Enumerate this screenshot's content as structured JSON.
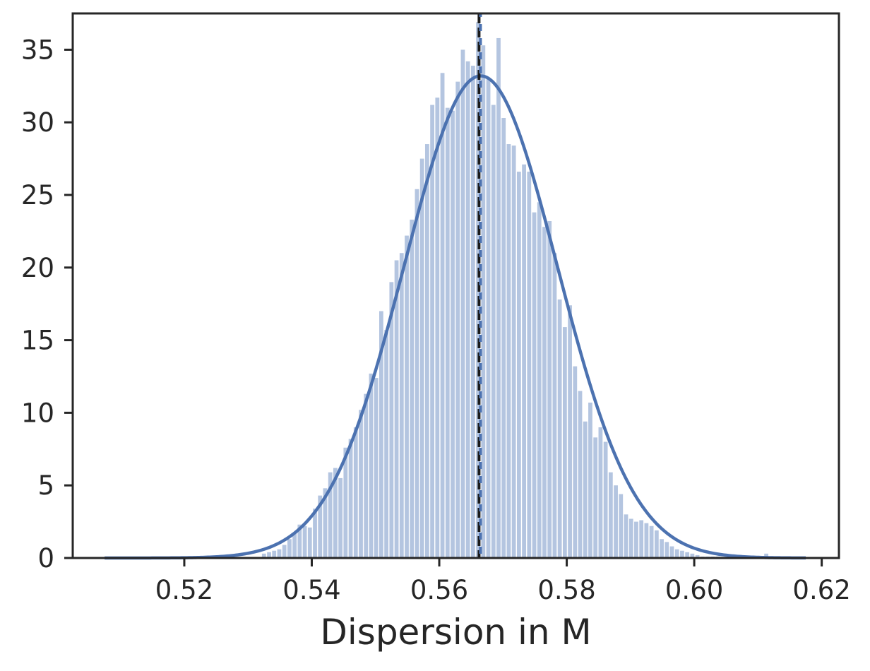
{
  "chart_data": {
    "type": "bar",
    "title": "",
    "xlabel": "Dispersion in M",
    "ylabel": "",
    "xlim": [
      0.5025,
      0.6227
    ],
    "ylim": [
      0,
      37.5
    ],
    "grid": false,
    "xticks": [
      {
        "value": 0.52,
        "label": "0.52"
      },
      {
        "value": 0.54,
        "label": "0.54"
      },
      {
        "value": 0.56,
        "label": "0.56"
      },
      {
        "value": 0.58,
        "label": "0.58"
      },
      {
        "value": 0.6,
        "label": "0.60"
      },
      {
        "value": 0.62,
        "label": "0.62"
      }
    ],
    "yticks": [
      {
        "value": 0,
        "label": "0"
      },
      {
        "value": 5,
        "label": "5"
      },
      {
        "value": 10,
        "label": "10"
      },
      {
        "value": 15,
        "label": "15"
      },
      {
        "value": 20,
        "label": "20"
      },
      {
        "value": 25,
        "label": "25"
      },
      {
        "value": 30,
        "label": "30"
      },
      {
        "value": 35,
        "label": "35"
      }
    ],
    "histogram": {
      "bin_centers": [
        0.5325,
        0.5333,
        0.5341,
        0.5349,
        0.5357,
        0.5365,
        0.5373,
        0.5381,
        0.5389,
        0.5397,
        0.5405,
        0.5413,
        0.5421,
        0.5429,
        0.5437,
        0.5445,
        0.5453,
        0.5461,
        0.5469,
        0.5477,
        0.5485,
        0.5493,
        0.5501,
        0.5509,
        0.5517,
        0.5525,
        0.5533,
        0.5541,
        0.5549,
        0.5557,
        0.5565,
        0.5573,
        0.5581,
        0.5589,
        0.5597,
        0.5605,
        0.5613,
        0.5621,
        0.5629,
        0.5637,
        0.5645,
        0.5653,
        0.5661,
        0.5669,
        0.5677,
        0.5685,
        0.5693,
        0.5701,
        0.5709,
        0.5717,
        0.5725,
        0.5733,
        0.5741,
        0.5749,
        0.5757,
        0.5765,
        0.5773,
        0.5781,
        0.5789,
        0.5797,
        0.5805,
        0.5813,
        0.5821,
        0.5829,
        0.5837,
        0.5845,
        0.5853,
        0.5861,
        0.5869,
        0.5877,
        0.5885,
        0.5893,
        0.5901,
        0.5909,
        0.5917,
        0.5925,
        0.5933,
        0.5941,
        0.5949,
        0.5957,
        0.5965,
        0.5973,
        0.5981,
        0.5989,
        0.5997,
        0.6005,
        0.6013,
        0.6021,
        0.6029,
        0.6037,
        0.6113
      ],
      "heights": [
        0.3,
        0.4,
        0.5,
        0.6,
        0.9,
        1.3,
        1.7,
        2.3,
        2.2,
        2.1,
        3.4,
        4.3,
        4.8,
        5.9,
        6.2,
        5.5,
        7.6,
        8.2,
        9.0,
        10.2,
        11.3,
        12.7,
        12.4,
        17.0,
        15.7,
        19.0,
        20.5,
        21.0,
        22.2,
        23.3,
        25.4,
        27.5,
        28.5,
        31.2,
        31.7,
        33.4,
        31.0,
        30.8,
        32.8,
        35.0,
        34.2,
        33.9,
        36.9,
        35.3,
        33.0,
        31.2,
        35.8,
        30.3,
        28.5,
        28.4,
        26.6,
        27.1,
        26.6,
        23.8,
        24.5,
        22.8,
        23.2,
        21.0,
        17.8,
        15.9,
        17.4,
        13.2,
        11.5,
        9.4,
        10.7,
        8.3,
        9.0,
        8.0,
        5.9,
        5.0,
        4.4,
        3.0,
        2.7,
        2.5,
        2.6,
        2.4,
        2.2,
        1.9,
        1.3,
        1.1,
        0.8,
        0.6,
        0.5,
        0.4,
        0.3,
        0.2,
        0.1,
        0.1,
        0.1,
        0.1,
        0.3
      ],
      "color": "#b4c5e0"
    },
    "kde": {
      "mean": 0.5665,
      "std": 0.012,
      "peak": 33.2,
      "x_range": [
        0.5075,
        0.6175
      ],
      "color": "#4c72b0"
    },
    "vertical_lines": [
      {
        "x": 0.5663,
        "style": "dashed",
        "color": "#1a1a1a"
      },
      {
        "x": 0.5663,
        "style": "dashed",
        "color": "#4c72b0"
      }
    ]
  }
}
